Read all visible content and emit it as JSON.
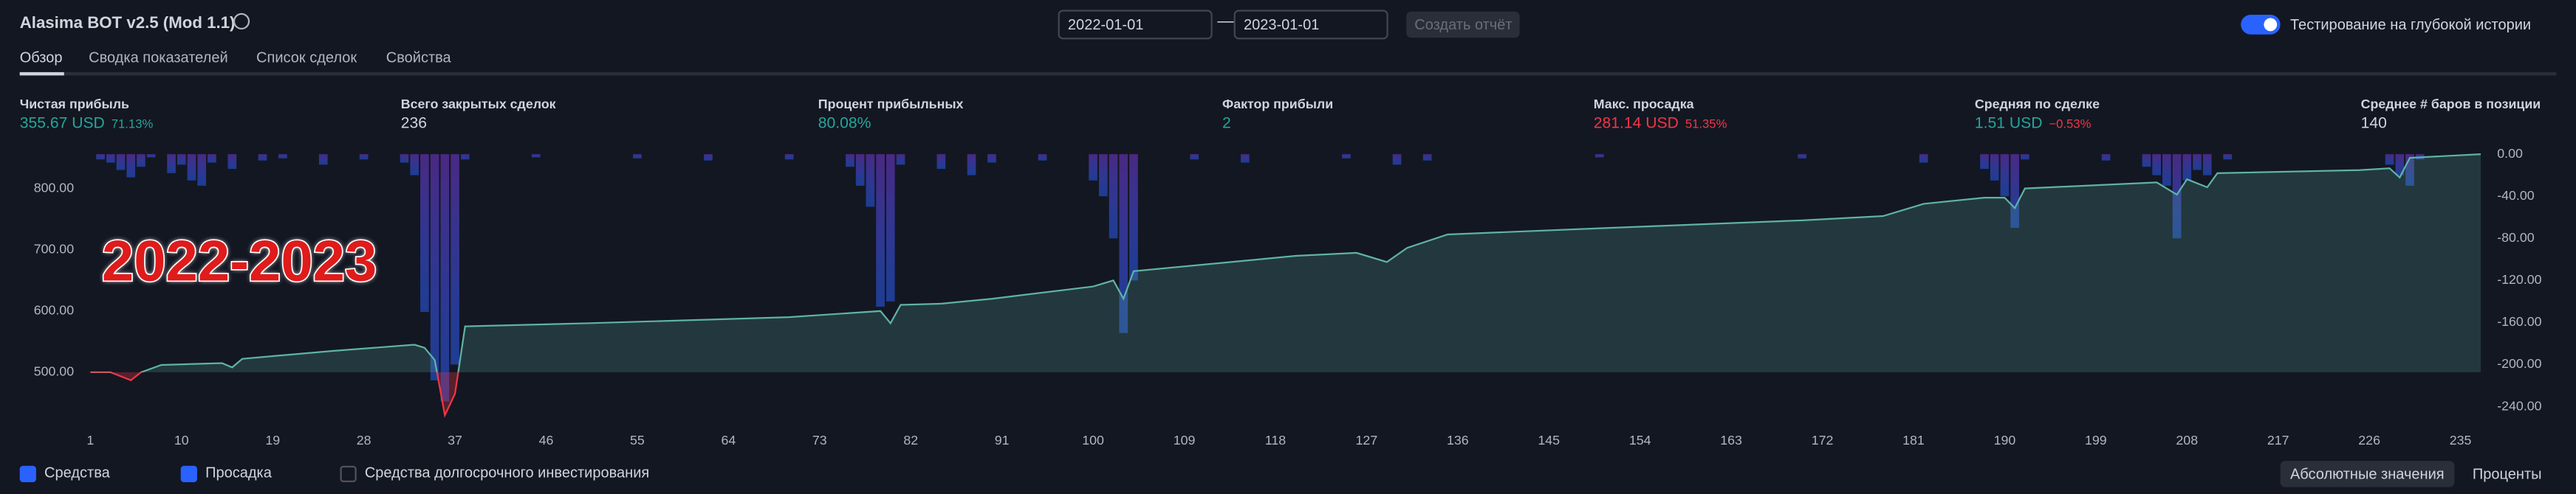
{
  "ui": {
    "strategy_name": "Alasima BOT v2.5 (Mod 1.1)",
    "date_from": "2022-01-01",
    "date_to": "2023-01-01",
    "create_report": "Создать отчёт",
    "deep_history": "Тестирование на глубокой истории",
    "tabs": [
      "Обзор",
      "Сводка показателей",
      "Список сделок",
      "Свойства"
    ],
    "stats": [
      {
        "label": "Чистая прибыль",
        "value": "355.67 USD",
        "extra": "71.13%"
      },
      {
        "label": "Всего закрытых сделок",
        "value": "236"
      },
      {
        "label": "Процент прибыльных",
        "value": "80.08%"
      },
      {
        "label": "Фактор прибыли",
        "value": "2"
      },
      {
        "label": "Макс. просадка",
        "value": "281.14 USD",
        "extra": "51.35%"
      },
      {
        "label": "Средняя по сделке",
        "value": "1.51 USD",
        "extra": "−0.53%"
      },
      {
        "label": "Среднее # баров в позиции",
        "value": "140"
      }
    ],
    "overlay": "2022-2023",
    "legend_extra": "Средства долгосрочного инвестирования",
    "buttons": [
      "Абсолютные значения",
      "Проценты"
    ]
  },
  "chart_data": {
    "type": "line",
    "xlim": [
      1,
      237
    ],
    "xticks": [
      1,
      10,
      19,
      28,
      37,
      46,
      55,
      64,
      73,
      82,
      91,
      100,
      109,
      118,
      127,
      136,
      145,
      154,
      163,
      172,
      181,
      190,
      199,
      208,
      217,
      226,
      235
    ],
    "ylim": [
      425,
      856
    ],
    "yticks": [
      {
        "value": 500,
        "label": "500.00"
      },
      {
        "value": 600,
        "label": "600.00"
      },
      {
        "value": 700,
        "label": "700.00"
      },
      {
        "value": 800,
        "label": "800.00"
      }
    ],
    "y2lim": [
      -251,
      0
    ],
    "y2ticks": [
      {
        "value": 0,
        "label": "0.00"
      },
      {
        "value": -40,
        "label": "-40.00"
      },
      {
        "value": -80,
        "label": "-80.00"
      },
      {
        "value": -120,
        "label": "-120.00"
      },
      {
        "value": -160,
        "label": "-160.00"
      },
      {
        "value": -200,
        "label": "-200.00"
      },
      {
        "value": -240,
        "label": "-240.00"
      }
    ],
    "series": [
      {
        "name": "Средства",
        "color": "#5fb3a5",
        "loss_color": "#f23645",
        "x": [
          1,
          3,
          5,
          6,
          8,
          14,
          15,
          16,
          25,
          33,
          34,
          35,
          36,
          37,
          38,
          50,
          70,
          79,
          80,
          81,
          85,
          90,
          100,
          102,
          103,
          104,
          120,
          126,
          129,
          131,
          135,
          150,
          170,
          178,
          182,
          188,
          190,
          191,
          192,
          205,
          207,
          208,
          210,
          211,
          225,
          228,
          229,
          230,
          237
        ],
        "values": [
          500,
          500,
          487,
          500,
          512,
          515,
          508,
          522,
          535,
          545,
          540,
          520,
          430,
          465,
          575,
          580,
          590,
          600,
          580,
          610,
          612,
          620,
          640,
          650,
          620,
          665,
          690,
          695,
          680,
          703,
          725,
          735,
          748,
          755,
          775,
          785,
          785,
          768,
          800,
          810,
          790,
          815,
          802,
          825,
          830,
          833,
          818,
          850,
          856
        ]
      },
      {
        "name": "Просадка",
        "color": "#5b2fa0",
        "axis": "y2",
        "x": [
          2,
          3,
          4,
          5,
          6,
          7,
          9,
          10,
          11,
          12,
          13,
          15,
          18,
          20,
          24,
          28,
          32,
          33,
          34,
          35,
          36,
          37,
          38,
          45,
          55,
          62,
          70,
          76,
          77,
          78,
          79,
          80,
          81,
          85,
          88,
          90,
          95,
          100,
          101,
          102,
          103,
          104,
          110,
          115,
          125,
          130,
          133,
          150,
          170,
          182,
          188,
          189,
          190,
          191,
          192,
          200,
          204,
          205,
          206,
          207,
          208,
          209,
          210,
          212,
          228,
          229,
          230,
          231
        ],
        "values": [
          -5,
          -8,
          -15,
          -22,
          -12,
          -3,
          -18,
          -10,
          -25,
          -30,
          -8,
          -14,
          -6,
          -4,
          -10,
          -5,
          -8,
          -20,
          -150,
          -215,
          -235,
          -200,
          -5,
          -3,
          -4,
          -6,
          -5,
          -12,
          -30,
          -50,
          -145,
          -140,
          -10,
          -14,
          -20,
          -8,
          -6,
          -25,
          -40,
          -80,
          -170,
          -120,
          -5,
          -8,
          -4,
          -10,
          -6,
          -3,
          -4,
          -8,
          -14,
          -25,
          -40,
          -70,
          -5,
          -6,
          -12,
          -20,
          -30,
          -80,
          -25,
          -15,
          -20,
          -5,
          -10,
          -20,
          -30,
          -5
        ]
      }
    ]
  }
}
